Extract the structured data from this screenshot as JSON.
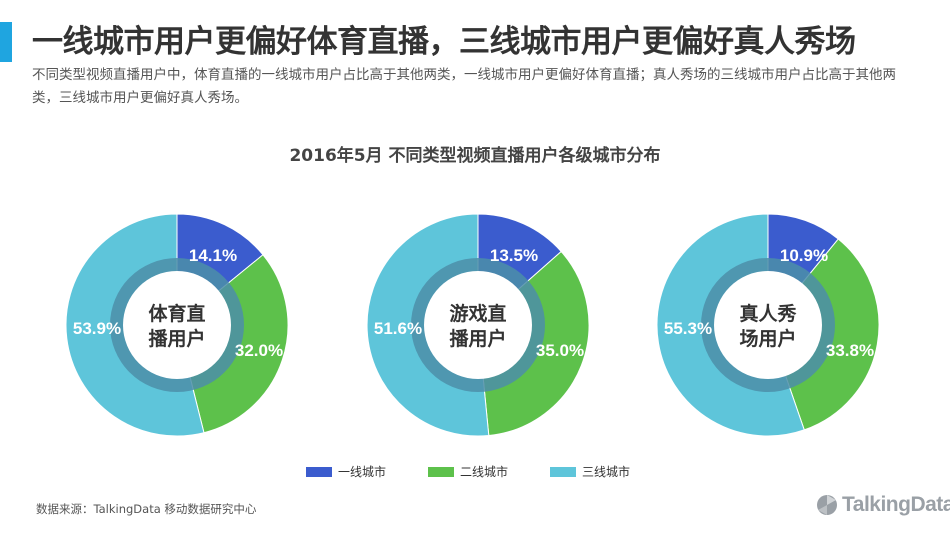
{
  "header": {
    "title": "一线城市用户更偏好体育直播，三线城市用户更偏好真人秀场",
    "subtitle": "不同类型视频直播用户中，体育直播的一线城市用户占比高于其他两类，一线城市用户更偏好体育直播；真人秀场的三线城市用户占比高于其他两类，三线城市用户更偏好真人秀场。"
  },
  "colors": {
    "accent": "#1fa5e0",
    "tier1": "#3b5cce",
    "tier2": "#5dc14b",
    "tier3": "#5ec5da",
    "ring": "#4c8ea8"
  },
  "chart_title": "2016年5月  不同类型视频直播用户各级城市分布",
  "chart_data": [
    {
      "type": "pie",
      "center_label": [
        "体育直",
        "播用户"
      ],
      "categories": [
        "一线城市",
        "二线城市",
        "三线城市"
      ],
      "values": [
        14.1,
        32.0,
        53.9
      ],
      "labels": [
        "14.1%",
        "32.0%",
        "53.9%"
      ]
    },
    {
      "type": "pie",
      "center_label": [
        "游戏直",
        "播用户"
      ],
      "categories": [
        "一线城市",
        "二线城市",
        "三线城市"
      ],
      "values": [
        13.5,
        35.0,
        51.6
      ],
      "labels": [
        "13.5%",
        "35.0%",
        "51.6%"
      ]
    },
    {
      "type": "pie",
      "center_label": [
        "真人秀",
        "场用户"
      ],
      "categories": [
        "一线城市",
        "二线城市",
        "三线城市"
      ],
      "values": [
        10.9,
        33.8,
        55.3
      ],
      "labels": [
        "10.9%",
        "33.8%",
        "55.3%"
      ]
    }
  ],
  "legend": [
    "一线城市",
    "二线城市",
    "三线城市"
  ],
  "footer": {
    "source": "数据来源：TalkingData 移动数据研究中心",
    "logo_text": "TalkingData"
  }
}
